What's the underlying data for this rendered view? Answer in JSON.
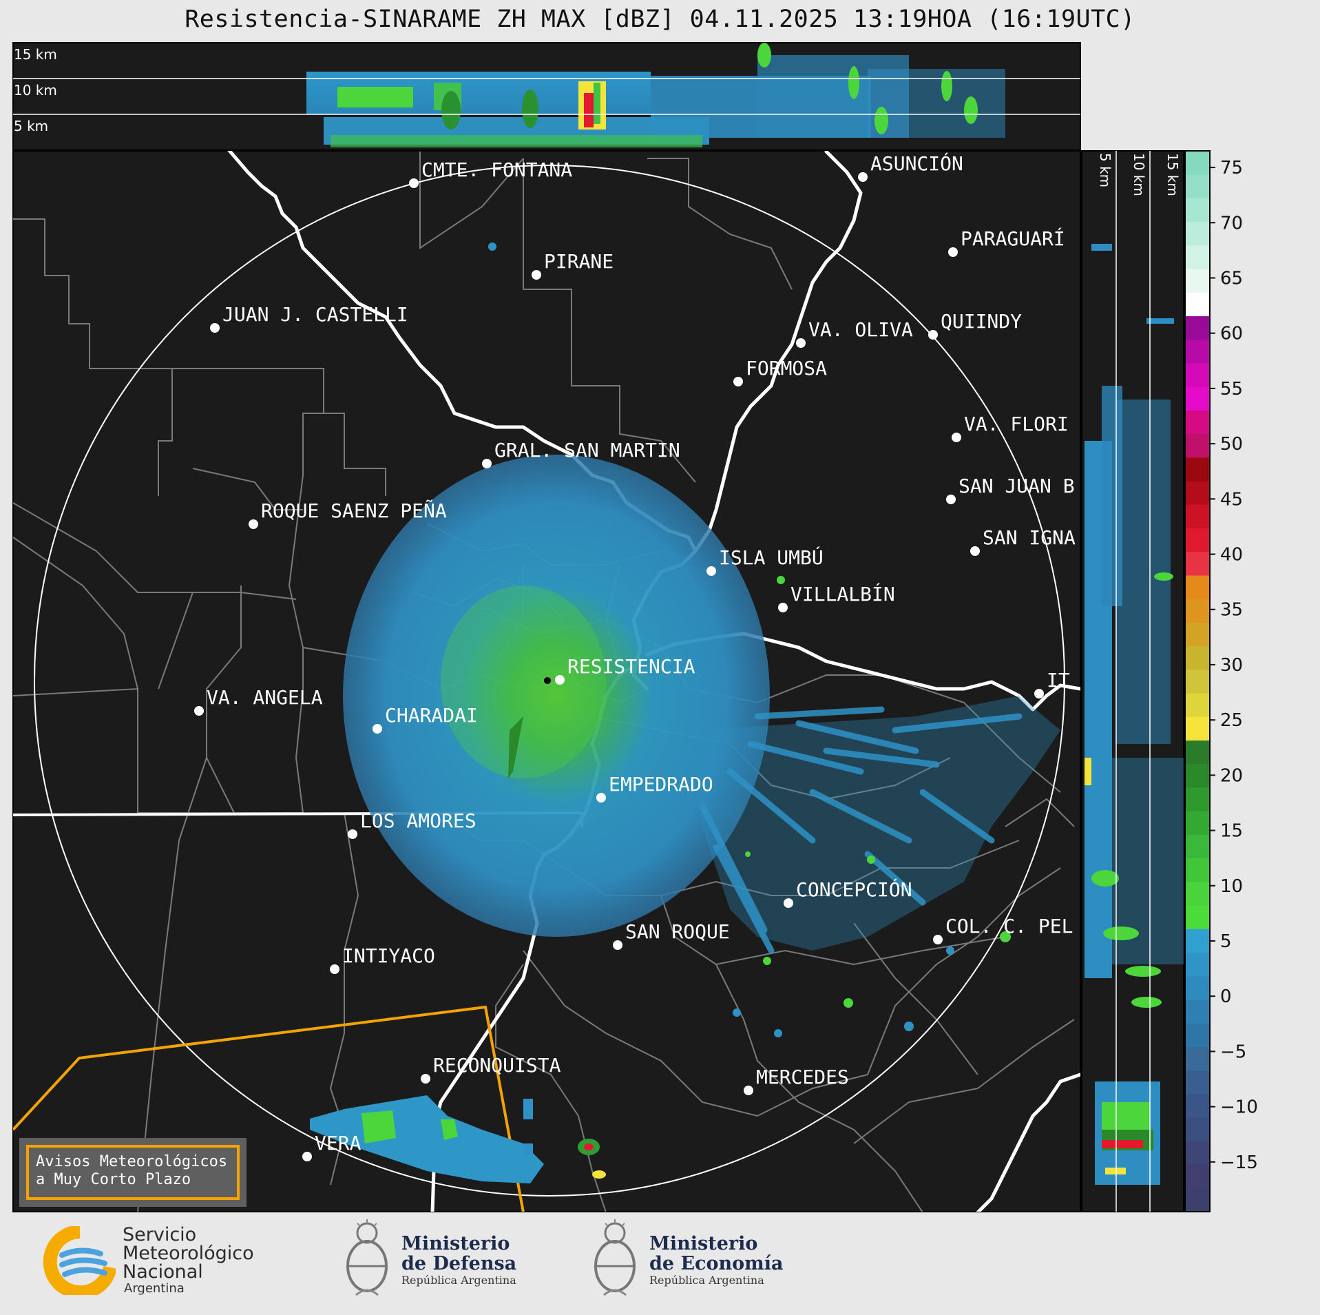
{
  "title": "Resistencia-SINARAME ZH MAX [dBZ] 04.11.2025 13:19HOA (16:19UTC)",
  "top_panel": {
    "labels": [
      "15 km",
      "10 km",
      "5 km"
    ]
  },
  "side_panel": {
    "labels": [
      "5 km",
      "10 km",
      "15 km"
    ]
  },
  "colorbar": {
    "ticks": [
      "75",
      "70",
      "65",
      "60",
      "55",
      "50",
      "45",
      "40",
      "35",
      "30",
      "25",
      "20",
      "15",
      "10",
      "5",
      "0",
      "−5",
      "−10",
      "−15"
    ]
  },
  "cities": [
    {
      "name": "CMTE. FONTANA"
    },
    {
      "name": "ASUNCIÓN"
    },
    {
      "name": "PIRANE"
    },
    {
      "name": "PARAGUARÍ"
    },
    {
      "name": "JUAN J. CASTELLI"
    },
    {
      "name": "VA. OLIVA"
    },
    {
      "name": "QUIINDY"
    },
    {
      "name": "FORMOSA"
    },
    {
      "name": "VA. FLORI"
    },
    {
      "name": "GRAL. SAN MARTIN"
    },
    {
      "name": "SAN JUAN B"
    },
    {
      "name": "ROQUE SAENZ PEÑA"
    },
    {
      "name": "SAN IGNA"
    },
    {
      "name": "ISLA UMBÚ"
    },
    {
      "name": "VILLALBÍN"
    },
    {
      "name": "RESISTENCIA"
    },
    {
      "name": "VA. ANGELA"
    },
    {
      "name": "CHARADAI"
    },
    {
      "name": "IT"
    },
    {
      "name": "EMPEDRADO"
    },
    {
      "name": "LOS AMORES"
    },
    {
      "name": "CONCEPCIÓN"
    },
    {
      "name": "SAN ROQUE"
    },
    {
      "name": "COL. C. PEL"
    },
    {
      "name": "INTIYACO"
    },
    {
      "name": "RECONQUISTA"
    },
    {
      "name": "MERCEDES"
    },
    {
      "name": "VERA"
    }
  ],
  "warning": {
    "line1": "Avisos Meteorológicos",
    "line2": "a Muy Corto Plazo"
  },
  "logos": {
    "smn": {
      "line1": "Servicio",
      "line2": "Meteorológico",
      "line3": "Nacional",
      "line4": "Argentina"
    },
    "defensa": {
      "line1": "Ministerio",
      "line2": "de Defensa",
      "sub": "República Argentina"
    },
    "economia": {
      "line1": "Ministerio",
      "line2": "de Economía",
      "sub": "República Argentina"
    }
  },
  "colors": {
    "frame": "#1b1b1b",
    "river": "#ffffff",
    "boundary": "#7a7a7a",
    "warning_outline": "#f5a300"
  }
}
